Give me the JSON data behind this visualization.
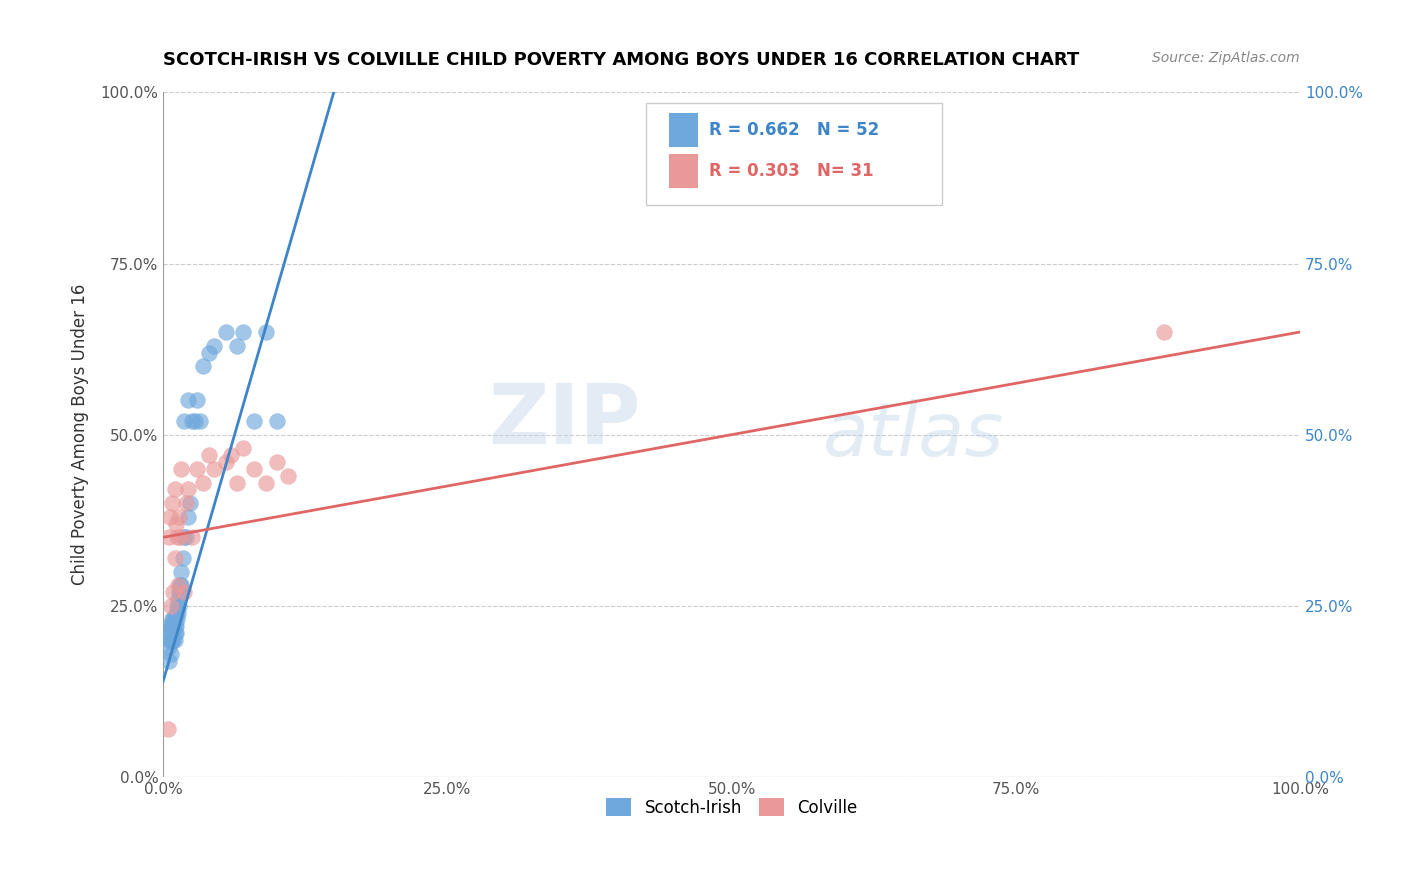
{
  "title": "SCOTCH-IRISH VS COLVILLE CHILD POVERTY AMONG BOYS UNDER 16 CORRELATION CHART",
  "source": "Source: ZipAtlas.com",
  "ylabel": "Child Poverty Among Boys Under 16",
  "xlim": [
    0,
    1.0
  ],
  "ylim": [
    0,
    1.0
  ],
  "xticks": [
    0.0,
    0.25,
    0.5,
    0.75,
    1.0
  ],
  "yticks": [
    0.0,
    0.25,
    0.5,
    0.75,
    1.0
  ],
  "xticklabels": [
    "0.0%",
    "25.0%",
    "50.0%",
    "75.0%",
    "100.0%"
  ],
  "yticklabels": [
    "0.0%",
    "25.0%",
    "50.0%",
    "75.0%",
    "100.0%"
  ],
  "right_yticklabels": [
    "0.0%",
    "25.0%",
    "50.0%",
    "75.0%",
    "100.0%"
  ],
  "scotch_irish_R": 0.662,
  "scotch_irish_N": 52,
  "colville_R": 0.303,
  "colville_N": 31,
  "blue_color": "#6fa8dc",
  "pink_color": "#ea9999",
  "blue_line_color": "#3d85c8",
  "pink_line_color": "#e06666",
  "watermark_zip": "ZIP",
  "watermark_atlas": "atlas",
  "scotch_irish_x": [
    0.005,
    0.005,
    0.005,
    0.005,
    0.005,
    0.007,
    0.007,
    0.007,
    0.007,
    0.008,
    0.008,
    0.008,
    0.009,
    0.009,
    0.009,
    0.01,
    0.01,
    0.01,
    0.01,
    0.011,
    0.011,
    0.011,
    0.012,
    0.012,
    0.013,
    0.013,
    0.014,
    0.014,
    0.015,
    0.015,
    0.016,
    0.016,
    0.017,
    0.018,
    0.018,
    0.02,
    0.022,
    0.022,
    0.024,
    0.025,
    0.028,
    0.03,
    0.032,
    0.035,
    0.04,
    0.045,
    0.055,
    0.065,
    0.07,
    0.08,
    0.09,
    0.1
  ],
  "scotch_irish_y": [
    0.17,
    0.19,
    0.2,
    0.21,
    0.22,
    0.18,
    0.2,
    0.21,
    0.22,
    0.2,
    0.22,
    0.23,
    0.2,
    0.22,
    0.23,
    0.2,
    0.21,
    0.22,
    0.23,
    0.21,
    0.22,
    0.24,
    0.23,
    0.25,
    0.24,
    0.26,
    0.25,
    0.27,
    0.27,
    0.28,
    0.28,
    0.3,
    0.32,
    0.35,
    0.52,
    0.35,
    0.38,
    0.55,
    0.4,
    0.52,
    0.52,
    0.55,
    0.52,
    0.6,
    0.62,
    0.63,
    0.65,
    0.63,
    0.65,
    0.52,
    0.65,
    0.52
  ],
  "colville_x": [
    0.004,
    0.005,
    0.006,
    0.007,
    0.008,
    0.009,
    0.01,
    0.01,
    0.011,
    0.012,
    0.013,
    0.014,
    0.015,
    0.016,
    0.018,
    0.02,
    0.022,
    0.025,
    0.03,
    0.035,
    0.04,
    0.045,
    0.055,
    0.06,
    0.065,
    0.07,
    0.08,
    0.09,
    0.1,
    0.11,
    0.88
  ],
  "colville_y": [
    0.07,
    0.35,
    0.38,
    0.25,
    0.4,
    0.27,
    0.32,
    0.42,
    0.37,
    0.35,
    0.28,
    0.38,
    0.35,
    0.45,
    0.27,
    0.4,
    0.42,
    0.35,
    0.45,
    0.43,
    0.47,
    0.45,
    0.46,
    0.47,
    0.43,
    0.48,
    0.45,
    0.43,
    0.46,
    0.44,
    0.65
  ],
  "blue_line_x": [
    0.0,
    0.15
  ],
  "blue_line_y": [
    0.14,
    1.0
  ],
  "pink_line_x": [
    0.0,
    1.0
  ],
  "pink_line_y": [
    0.35,
    0.65
  ]
}
